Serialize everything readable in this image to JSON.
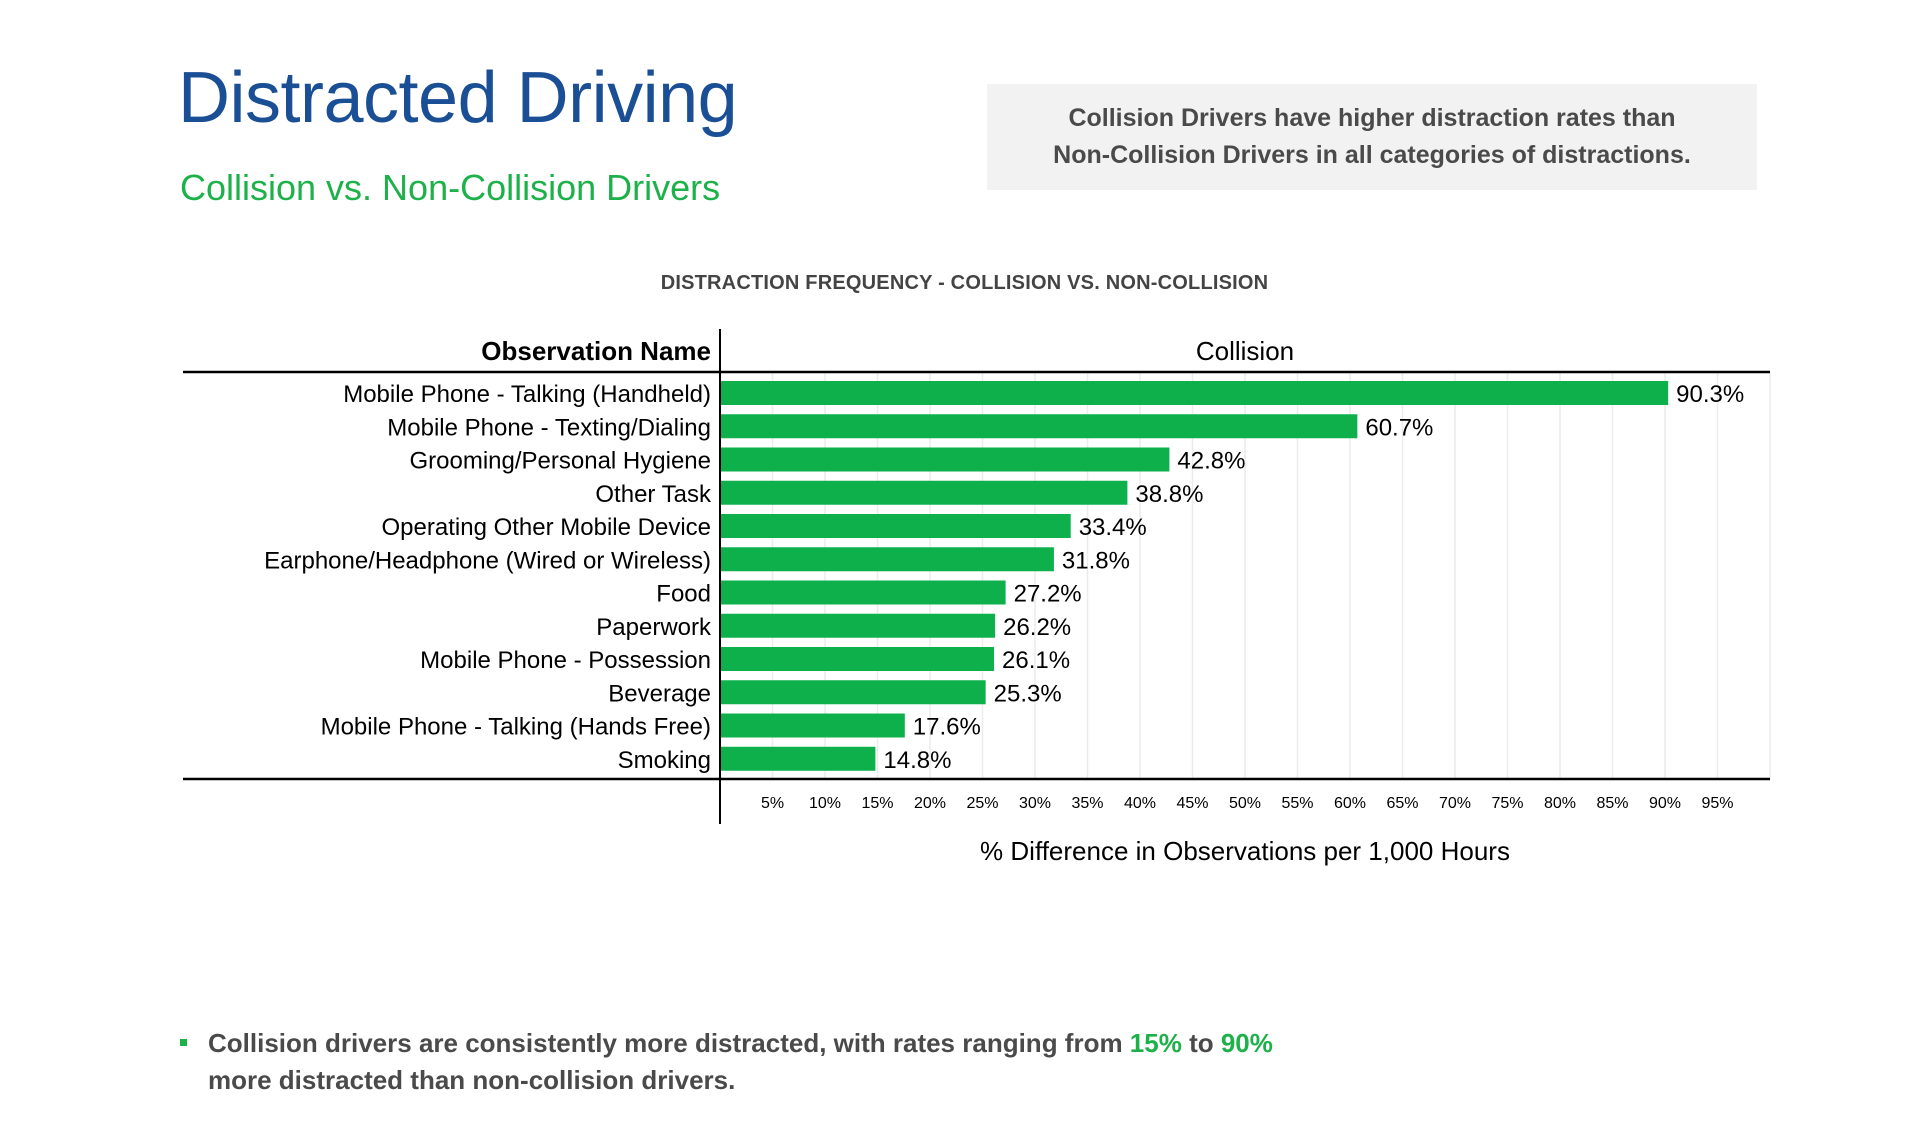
{
  "header": {
    "title": "Distracted Driving",
    "subtitle": "Collision vs. Non-Collision Drivers"
  },
  "callout": {
    "line1": "Collision Drivers have higher distraction rates than",
    "line2": "Non-Collision Drivers in all categories of distractions."
  },
  "chart_heading": "DISTRACTION FREQUENCY - COLLISION VS. NON-COLLISION",
  "colors": {
    "bar": "#0db04b",
    "title": "#1a4f96",
    "accent": "#1db14a"
  },
  "chart_data": {
    "type": "bar",
    "orientation": "horizontal",
    "row_header": "Observation Name",
    "column_header": "Collision",
    "xlabel": "% Difference in Observations per 1,000 Hours",
    "ylabel": "",
    "xlim": [
      0,
      100
    ],
    "x_ticks": [
      "5%",
      "10%",
      "15%",
      "20%",
      "25%",
      "30%",
      "35%",
      "40%",
      "45%",
      "50%",
      "55%",
      "60%",
      "65%",
      "70%",
      "75%",
      "80%",
      "85%",
      "90%",
      "95%"
    ],
    "grid": true,
    "categories": [
      "Mobile Phone - Talking (Handheld)",
      "Mobile Phone - Texting/Dialing",
      "Grooming/Personal Hygiene",
      "Other Task",
      "Operating Other Mobile Device",
      "Earphone/Headphone (Wired or Wireless)",
      "Food",
      "Paperwork",
      "Mobile Phone - Possession",
      "Beverage",
      "Mobile Phone - Talking (Hands Free)",
      "Smoking"
    ],
    "values": [
      90.3,
      60.7,
      42.8,
      38.8,
      33.4,
      31.8,
      27.2,
      26.2,
      26.1,
      25.3,
      17.6,
      14.8
    ],
    "value_labels": [
      "90.3%",
      "60.7%",
      "42.8%",
      "38.8%",
      "33.4%",
      "31.8%",
      "27.2%",
      "26.2%",
      "26.1%",
      "25.3%",
      "17.6%",
      "14.8%"
    ]
  },
  "footer": {
    "prefix": "Collision drivers are consistently more distracted, with rates ranging from ",
    "low": "15%",
    "mid": " to ",
    "high": "90%",
    "line2": "more distracted than non-collision drivers."
  }
}
